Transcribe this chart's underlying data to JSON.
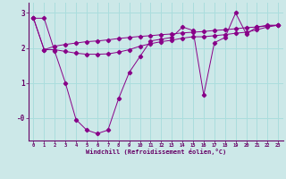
{
  "xlabel": "Windchill (Refroidissement éolien,°C)",
  "background_color": "#cce8e8",
  "line_color": "#880088",
  "grid_color": "#aacccc",
  "series1_x": [
    0,
    1,
    2,
    3,
    4,
    5,
    6,
    7,
    8,
    9,
    10,
    11,
    12,
    13,
    14,
    15,
    16,
    17,
    18,
    19,
    20,
    21,
    22,
    23
  ],
  "series1_y": [
    2.85,
    2.85,
    1.9,
    1.0,
    -0.05,
    -0.35,
    -0.45,
    -0.35,
    0.55,
    1.3,
    1.75,
    2.2,
    2.25,
    2.3,
    2.6,
    2.5,
    0.65,
    2.15,
    2.3,
    3.0,
    2.4,
    2.6,
    2.65,
    2.65
  ],
  "series2_x": [
    0,
    1,
    2,
    3,
    4,
    5,
    6,
    7,
    8,
    9,
    10,
    11,
    12,
    13,
    14,
    15,
    16,
    17,
    18,
    19,
    20,
    21,
    22,
    23
  ],
  "series2_y": [
    2.85,
    1.95,
    1.95,
    1.9,
    1.85,
    1.82,
    1.82,
    1.83,
    1.88,
    1.95,
    2.05,
    2.12,
    2.18,
    2.22,
    2.28,
    2.32,
    2.32,
    2.35,
    2.38,
    2.42,
    2.45,
    2.52,
    2.6,
    2.65
  ],
  "series3_x": [
    0,
    1,
    2,
    3,
    4,
    5,
    6,
    7,
    8,
    9,
    10,
    11,
    12,
    13,
    14,
    15,
    16,
    17,
    18,
    19,
    20,
    21,
    22,
    23
  ],
  "series3_y": [
    2.85,
    1.95,
    2.05,
    2.1,
    2.14,
    2.18,
    2.2,
    2.23,
    2.27,
    2.3,
    2.33,
    2.35,
    2.38,
    2.4,
    2.43,
    2.45,
    2.47,
    2.5,
    2.52,
    2.55,
    2.58,
    2.6,
    2.63,
    2.65
  ],
  "ytick_vals": [
    0,
    1,
    2,
    3
  ],
  "ytick_labels": [
    "-0",
    "1",
    "2",
    "3"
  ],
  "ylim": [
    -0.65,
    3.3
  ],
  "xlim": [
    -0.5,
    23.5
  ],
  "xtick_vals": [
    0,
    1,
    2,
    3,
    4,
    5,
    6,
    7,
    8,
    9,
    10,
    11,
    12,
    13,
    14,
    15,
    16,
    17,
    18,
    19,
    20,
    21,
    22,
    23
  ]
}
